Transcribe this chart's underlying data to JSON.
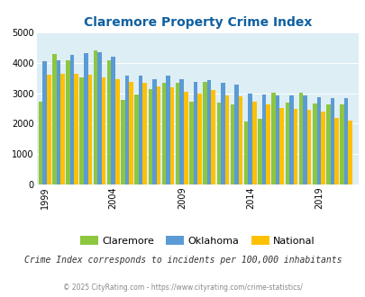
{
  "title": "Claremore Property Crime Index",
  "title_color": "#1060a0",
  "years": [
    1999,
    2000,
    2001,
    2002,
    2003,
    2004,
    2005,
    2006,
    2007,
    2008,
    2009,
    2010,
    2011,
    2012,
    2013,
    2014,
    2015,
    2016,
    2017,
    2018,
    2019,
    2020,
    2021
  ],
  "claremore": [
    2720,
    4310,
    4090,
    3530,
    4410,
    4080,
    2780,
    2970,
    3150,
    3350,
    3350,
    2730,
    3380,
    2700,
    2640,
    2060,
    2150,
    3010,
    2680,
    3010,
    2650,
    2640,
    2640
  ],
  "oklahoma": [
    4050,
    4080,
    4260,
    4330,
    4350,
    4210,
    3590,
    3590,
    3460,
    3570,
    3450,
    3380,
    3440,
    3350,
    3300,
    3000,
    2950,
    2920,
    2920,
    2930,
    2880,
    2840,
    2830
  ],
  "national": [
    3600,
    3650,
    3630,
    3600,
    3510,
    3450,
    3370,
    3350,
    3230,
    3210,
    3060,
    2980,
    3100,
    2940,
    2910,
    2720,
    2620,
    2510,
    2470,
    2460,
    2380,
    2200,
    2100
  ],
  "claremore_color": "#8dc63f",
  "oklahoma_color": "#5b9bd5",
  "national_color": "#ffc000",
  "bg_color": "#ddeef5",
  "ylim": [
    0,
    5000
  ],
  "yticks": [
    0,
    1000,
    2000,
    3000,
    4000,
    5000
  ],
  "x_tick_labels": [
    "1999",
    "2004",
    "2009",
    "2014",
    "2019"
  ],
  "x_tick_positions": [
    1999,
    2004,
    2009,
    2014,
    2019
  ],
  "legend_labels": [
    "Claremore",
    "Oklahoma",
    "National"
  ],
  "footnote1": "Crime Index corresponds to incidents per 100,000 inhabitants",
  "footnote2": "© 2025 CityRating.com - https://www.cityrating.com/crime-statistics/",
  "footnote1_color": "#333333",
  "footnote2_color": "#888888"
}
